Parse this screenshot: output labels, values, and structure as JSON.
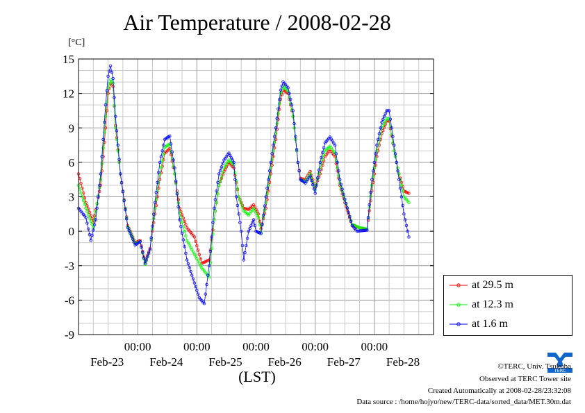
{
  "chart_data": {
    "type": "line",
    "title": "Air Temperature / 2008-02-28",
    "ylabel": "[°C]",
    "xlabel": "(LST)",
    "ylim": [
      -9,
      15
    ],
    "yticks": [
      -9,
      -6,
      -3,
      0,
      3,
      6,
      9,
      12,
      15
    ],
    "xrange_hours": [
      0,
      144
    ],
    "xticks": [
      {
        "time": "00:00",
        "date": "Feb-23",
        "hour": 24
      },
      {
        "time": "00:00",
        "date": "Feb-24",
        "hour": 48
      },
      {
        "time": "00:00",
        "date": "Feb-25",
        "hour": 72
      },
      {
        "time": "00:00",
        "date": "Feb-26",
        "hour": 96
      },
      {
        "time": "00:00",
        "date": "Feb-27",
        "hour": 120
      },
      {
        "time": "",
        "date": "Feb-28",
        "hour": 144
      }
    ],
    "grid": true,
    "legend_position": "bottom-right",
    "series": [
      {
        "name": "at 29.5 m",
        "color": "#ff0000",
        "points": [
          [
            0,
            5.0
          ],
          [
            3,
            2.5
          ],
          [
            6,
            0.8
          ],
          [
            9,
            4.0
          ],
          [
            11,
            9.0
          ],
          [
            12,
            12.0
          ],
          [
            13,
            12.9
          ],
          [
            14,
            12.6
          ],
          [
            15,
            9.2
          ],
          [
            17,
            5.0
          ],
          [
            20,
            0.5
          ],
          [
            23,
            -1.0
          ],
          [
            25,
            -0.8
          ],
          [
            27,
            -2.7
          ],
          [
            29,
            -1.5
          ],
          [
            31,
            1.5
          ],
          [
            33,
            4.5
          ],
          [
            35,
            6.8
          ],
          [
            37,
            7.2
          ],
          [
            39,
            5.0
          ],
          [
            41,
            2.0
          ],
          [
            44,
            0.3
          ],
          [
            47,
            -0.5
          ],
          [
            50,
            -2.8
          ],
          [
            53,
            -2.5
          ],
          [
            55,
            1.0
          ],
          [
            57,
            4.0
          ],
          [
            59,
            5.2
          ],
          [
            61,
            6.0
          ],
          [
            63,
            5.5
          ],
          [
            65,
            3.0
          ],
          [
            67,
            2.0
          ],
          [
            69,
            1.9
          ],
          [
            71,
            2.3
          ],
          [
            73,
            1.5
          ],
          [
            74,
            0.2
          ],
          [
            76,
            2.0
          ],
          [
            78,
            5.0
          ],
          [
            80,
            8.0
          ],
          [
            82,
            11.5
          ],
          [
            83,
            12.3
          ],
          [
            85,
            12.0
          ],
          [
            87,
            10.0
          ],
          [
            89,
            6.0
          ],
          [
            90,
            4.6
          ],
          [
            92,
            4.5
          ],
          [
            94,
            5.2
          ],
          [
            96,
            3.8
          ],
          [
            98,
            5.0
          ],
          [
            100,
            6.5
          ],
          [
            102,
            7.1
          ],
          [
            104,
            6.5
          ],
          [
            106,
            4.0
          ],
          [
            108,
            2.5
          ],
          [
            111,
            0.5
          ],
          [
            114,
            0.3
          ],
          [
            117,
            0.1
          ],
          [
            119,
            3.5
          ],
          [
            121,
            6.5
          ],
          [
            123,
            8.5
          ],
          [
            125,
            9.6
          ],
          [
            126,
            9.6
          ],
          [
            128,
            7.0
          ],
          [
            130,
            5.0
          ],
          [
            132,
            3.5
          ],
          [
            134,
            3.3
          ]
        ]
      },
      {
        "name": "at 12.3 m",
        "color": "#00ff00",
        "points": [
          [
            0,
            4.0
          ],
          [
            3,
            2.0
          ],
          [
            6,
            0.3
          ],
          [
            9,
            4.5
          ],
          [
            11,
            10.0
          ],
          [
            12,
            12.5
          ],
          [
            13,
            13.2
          ],
          [
            14,
            12.9
          ],
          [
            15,
            9.0
          ],
          [
            17,
            5.0
          ],
          [
            20,
            0.4
          ],
          [
            23,
            -1.1
          ],
          [
            25,
            -0.9
          ],
          [
            27,
            -2.9
          ],
          [
            29,
            -1.6
          ],
          [
            31,
            2.0
          ],
          [
            33,
            5.0
          ],
          [
            35,
            7.3
          ],
          [
            37,
            7.6
          ],
          [
            39,
            5.0
          ],
          [
            41,
            1.6
          ],
          [
            44,
            -0.8
          ],
          [
            47,
            -2.0
          ],
          [
            50,
            -3.2
          ],
          [
            53,
            -4.0
          ],
          [
            55,
            1.0
          ],
          [
            57,
            4.0
          ],
          [
            59,
            5.5
          ],
          [
            61,
            6.2
          ],
          [
            63,
            5.8
          ],
          [
            65,
            3.0
          ],
          [
            67,
            1.8
          ],
          [
            69,
            1.4
          ],
          [
            71,
            2.0
          ],
          [
            73,
            1.2
          ],
          [
            74,
            -0.1
          ],
          [
            76,
            2.5
          ],
          [
            78,
            5.5
          ],
          [
            80,
            8.5
          ],
          [
            82,
            12.0
          ],
          [
            83,
            12.6
          ],
          [
            85,
            12.2
          ],
          [
            87,
            10.0
          ],
          [
            89,
            6.0
          ],
          [
            90,
            4.5
          ],
          [
            92,
            4.3
          ],
          [
            94,
            5.0
          ],
          [
            96,
            3.6
          ],
          [
            98,
            5.5
          ],
          [
            100,
            7.0
          ],
          [
            102,
            7.4
          ],
          [
            104,
            6.8
          ],
          [
            106,
            4.2
          ],
          [
            108,
            2.7
          ],
          [
            111,
            0.6
          ],
          [
            114,
            0.3
          ],
          [
            117,
            0.2
          ],
          [
            119,
            4.0
          ],
          [
            121,
            7.0
          ],
          [
            123,
            9.0
          ],
          [
            125,
            9.8
          ],
          [
            126,
            9.8
          ],
          [
            128,
            7.0
          ],
          [
            130,
            5.0
          ],
          [
            132,
            3.0
          ],
          [
            134,
            2.5
          ]
        ]
      },
      {
        "name": "at 1.6 m",
        "color": "#0000ff",
        "points": [
          [
            0,
            2.0
          ],
          [
            3,
            1.2
          ],
          [
            5,
            -0.8
          ],
          [
            7,
            1.0
          ],
          [
            9,
            5.0
          ],
          [
            11,
            11.0
          ],
          [
            12,
            13.5
          ],
          [
            13,
            14.4
          ],
          [
            14,
            13.3
          ],
          [
            15,
            10.0
          ],
          [
            17,
            5.0
          ],
          [
            20,
            0.3
          ],
          [
            23,
            -1.2
          ],
          [
            25,
            -0.9
          ],
          [
            27,
            -2.8
          ],
          [
            29,
            -1.6
          ],
          [
            31,
            2.5
          ],
          [
            33,
            6.0
          ],
          [
            35,
            8.0
          ],
          [
            37,
            8.3
          ],
          [
            39,
            5.5
          ],
          [
            41,
            1.0
          ],
          [
            44,
            -2.5
          ],
          [
            47,
            -4.5
          ],
          [
            49,
            -5.8
          ],
          [
            51,
            -6.3
          ],
          [
            53,
            -3.0
          ],
          [
            55,
            2.0
          ],
          [
            57,
            5.0
          ],
          [
            59,
            6.2
          ],
          [
            61,
            6.8
          ],
          [
            63,
            6.0
          ],
          [
            64,
            3.0
          ],
          [
            66,
            0.0
          ],
          [
            67,
            -2.5
          ],
          [
            69,
            0.0
          ],
          [
            71,
            1.0
          ],
          [
            72,
            0.0
          ],
          [
            74,
            -0.2
          ],
          [
            76,
            3.0
          ],
          [
            78,
            6.0
          ],
          [
            80,
            9.0
          ],
          [
            82,
            12.3
          ],
          [
            83,
            13.0
          ],
          [
            85,
            12.5
          ],
          [
            87,
            10.5
          ],
          [
            89,
            6.0
          ],
          [
            90,
            4.5
          ],
          [
            92,
            4.2
          ],
          [
            94,
            4.8
          ],
          [
            96,
            3.3
          ],
          [
            98,
            6.0
          ],
          [
            100,
            7.7
          ],
          [
            102,
            8.2
          ],
          [
            104,
            7.5
          ],
          [
            106,
            4.5
          ],
          [
            108,
            2.8
          ],
          [
            111,
            0.5
          ],
          [
            113,
            0.0
          ],
          [
            117,
            0.1
          ],
          [
            119,
            4.5
          ],
          [
            121,
            7.5
          ],
          [
            123,
            9.5
          ],
          [
            125,
            10.5
          ],
          [
            126,
            10.5
          ],
          [
            128,
            7.5
          ],
          [
            130,
            4.5
          ],
          [
            132,
            1.5
          ],
          [
            133,
            0.5
          ],
          [
            134,
            -0.5
          ]
        ]
      }
    ]
  },
  "credits": {
    "copyright": "©TERC, Univ. Tsukuba",
    "observed": "Observed at TERC Tower site",
    "created": "Created Automatically at 2008-02-28/23:32:08",
    "source": "Data source : /home/hojyo/new/TERC-data/sorted_data/MET.30m.dat",
    "logo_text": "TERC"
  }
}
